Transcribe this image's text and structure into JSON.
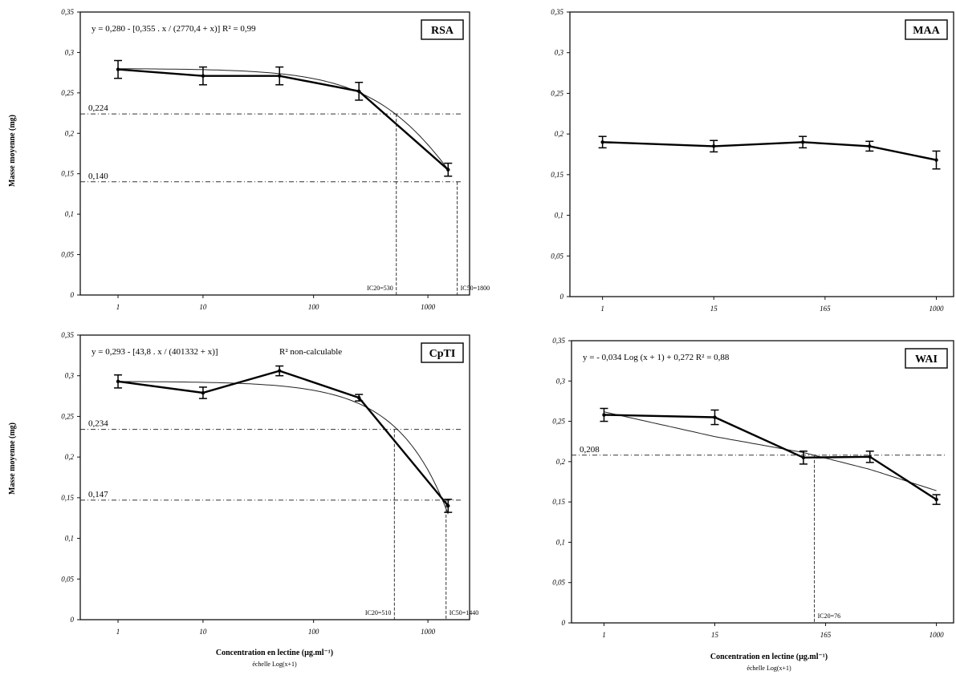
{
  "figure": {
    "ylabel": "Masse moyenne (mg)",
    "xlabel": "Concentration en lectine (µg.ml⁻¹)",
    "xlabel_sub": "échelle Log(x+1)"
  },
  "chart_data": [
    {
      "type": "line",
      "name": "RSA",
      "equation": "y = 0,280 - [0,355 . x / (2770,4 + x)]     R² = 0,99",
      "x_ticks": [
        "1",
        "10",
        "100",
        "1000"
      ],
      "y_ticks": [
        "0",
        "0,05",
        "0,1",
        "0,15",
        "0,2",
        "0,25",
        "0,3",
        "0,35"
      ],
      "ylim": [
        0,
        0.35
      ],
      "x": [
        1,
        10,
        50,
        250,
        1500
      ],
      "y": [
        0.279,
        0.271,
        0.271,
        0.252,
        0.155
      ],
      "err": [
        0.011,
        0.011,
        0.011,
        0.011,
        0.008
      ],
      "fit": {
        "type": "hyperbolic",
        "a": 0.28,
        "b": 0.355,
        "k": 2770.4
      },
      "hlines": [
        {
          "y": 0.224,
          "label": "0,224",
          "x_end": 530
        },
        {
          "y": 0.14,
          "label": "0,140",
          "x_end": 1800
        }
      ],
      "vlines": [
        {
          "x": 530,
          "y": 0.224,
          "label": "IC20=530"
        },
        {
          "x": 1800,
          "y": 0.14,
          "label": "IC50=1800"
        }
      ],
      "axis_style": "loghalf"
    },
    {
      "type": "line",
      "name": "MAA",
      "equation": "",
      "x_ticks": [
        "1",
        "15",
        "165",
        "1000"
      ],
      "y_ticks": [
        "0",
        "0,05",
        "0,1",
        "0,15",
        "0,2",
        "0,25",
        "0,3",
        "0,35"
      ],
      "ylim": [
        0,
        0.35
      ],
      "x": [
        1,
        15,
        60,
        250,
        1500
      ],
      "y": [
        0.19,
        0.185,
        0.19,
        0.185,
        0.168
      ],
      "err": [
        0.007,
        0.007,
        0.007,
        0.006,
        0.011
      ],
      "fit": {
        "type": "none"
      },
      "hlines": [],
      "vlines": [],
      "axis_style": "equal"
    },
    {
      "type": "line",
      "name": "CpTI",
      "equation": "y = 0,293 - [43,8 . x / (401332 + x)]",
      "r2_note": "non-calculable",
      "x_ticks": [
        "1",
        "10",
        "100",
        "1000"
      ],
      "y_ticks": [
        "0",
        "0,05",
        "0,1",
        "0,15",
        "0,2",
        "0,25",
        "0,3",
        "0,35"
      ],
      "ylim": [
        0,
        0.35
      ],
      "x": [
        1,
        10,
        50,
        250,
        1500
      ],
      "y": [
        0.293,
        0.279,
        0.306,
        0.273,
        0.14
      ],
      "err": [
        0.008,
        0.007,
        0.006,
        0.004,
        0.008
      ],
      "fit": {
        "type": "hyperbolic",
        "a": 0.293,
        "b": 43.8,
        "k": 401332
      },
      "hlines": [
        {
          "y": 0.234,
          "label": "0,234",
          "x_end": 510
        },
        {
          "y": 0.147,
          "label": "0,147",
          "x_end": 1440
        }
      ],
      "vlines": [
        {
          "x": 510,
          "y": 0.234,
          "label": "IC20=510"
        },
        {
          "x": 1440,
          "y": 0.147,
          "label": "IC50=1440"
        }
      ],
      "axis_style": "loghalf"
    },
    {
      "type": "line",
      "name": "WAI",
      "equation": "y = - 0,034 Log (x + 1) + 0,272     R² = 0,88",
      "x_ticks": [
        "1",
        "15",
        "165",
        "1000"
      ],
      "y_ticks": [
        "0",
        "0,05",
        "0,1",
        "0,15",
        "0,2",
        "0,25",
        "0,3",
        "0,35"
      ],
      "ylim": [
        0,
        0.35
      ],
      "x": [
        1,
        15,
        60,
        250,
        1500
      ],
      "y": [
        0.258,
        0.255,
        0.205,
        0.206,
        0.153
      ],
      "err": [
        0.008,
        0.009,
        0.008,
        0.007,
        0.006
      ],
      "fit": {
        "type": "log",
        "a": -0.034,
        "b": 0.272
      },
      "hlines": [
        {
          "y": 0.208,
          "label": "0,208",
          "x_end": 76
        }
      ],
      "vlines": [
        {
          "x": 76,
          "y": 0.208,
          "label": "IC20=76"
        }
      ],
      "axis_style": "equal"
    }
  ]
}
